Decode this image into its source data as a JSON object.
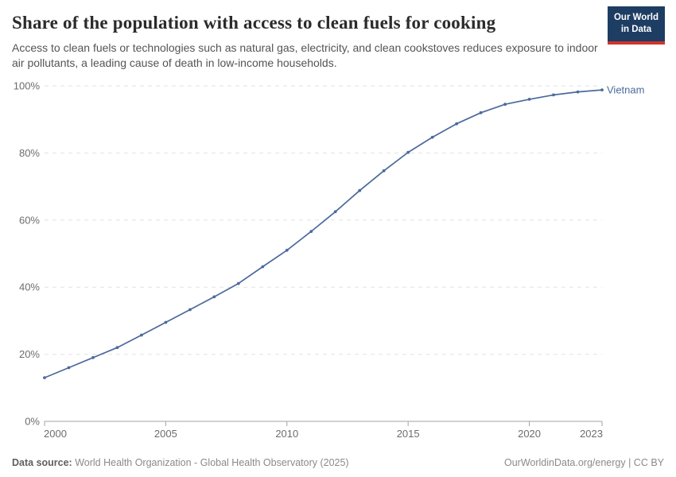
{
  "header": {
    "title": "Share of the population with access to clean fuels for cooking",
    "subtitle": "Access to clean fuels or technologies such as natural gas, electricity, and clean cookstoves reduces exposure to indoor air pollutants, a leading cause of death in low-income households.",
    "logo": {
      "line1": "Our World",
      "line2": "in Data"
    }
  },
  "chart_data": {
    "type": "line",
    "title": "Share of the population with access to clean fuels for cooking",
    "x": [
      2000,
      2001,
      2002,
      2003,
      2004,
      2005,
      2006,
      2007,
      2008,
      2009,
      2010,
      2011,
      2012,
      2013,
      2014,
      2015,
      2016,
      2017,
      2018,
      2019,
      2020,
      2021,
      2022,
      2023
    ],
    "series": [
      {
        "name": "Vietnam",
        "color": "#4c6a9c",
        "values": [
          13,
          16,
          19,
          22,
          25.7,
          29.5,
          33.3,
          37.1,
          41.1,
          46.1,
          51,
          56.6,
          62.5,
          68.8,
          74.7,
          80.2,
          84.7,
          88.7,
          92,
          94.5,
          96,
          97.3,
          98.2,
          98.8
        ]
      }
    ],
    "x_ticks": [
      2000,
      2005,
      2010,
      2015,
      2020,
      2023
    ],
    "y_ticks": [
      0,
      20,
      40,
      60,
      80,
      100
    ],
    "y_tick_suffix": "%",
    "xlabel": "",
    "ylabel": "",
    "xlim": [
      2000,
      2023
    ],
    "ylim": [
      0,
      100
    ],
    "grid": "horizontal-dashed",
    "legend_position": "end-of-line-label",
    "entity_label": "Vietnam"
  },
  "footer": {
    "source_label": "Data source:",
    "source": "World Health Organization - Global Health Observatory (2025)",
    "link": "OurWorldinData.org/energy | CC BY"
  },
  "colors": {
    "line": "#4c6a9c",
    "grid": "#e2e2e2",
    "axis": "#a3a3a3",
    "tick_text": "#6d6d6d",
    "logo_bg": "#1d3d63",
    "logo_stripe": "#d0342c"
  }
}
